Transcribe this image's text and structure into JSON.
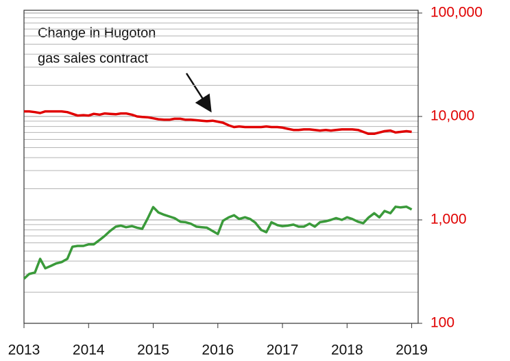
{
  "chart_data": {
    "type": "line",
    "annotation": [
      "Change in Hugoton",
      "gas sales contract"
    ],
    "x": [
      2013,
      2013.08,
      2013.17,
      2013.25,
      2013.33,
      2013.42,
      2013.5,
      2013.58,
      2013.67,
      2013.75,
      2013.83,
      2013.92,
      2014,
      2014.08,
      2014.17,
      2014.25,
      2014.33,
      2014.42,
      2014.5,
      2014.58,
      2014.67,
      2014.75,
      2014.83,
      2014.92,
      2015,
      2015.08,
      2015.17,
      2015.25,
      2015.33,
      2015.42,
      2015.5,
      2015.58,
      2015.67,
      2015.75,
      2015.83,
      2015.92,
      2016,
      2016.08,
      2016.17,
      2016.25,
      2016.33,
      2016.42,
      2016.5,
      2016.58,
      2016.67,
      2016.75,
      2016.83,
      2016.92,
      2017,
      2017.08,
      2017.17,
      2017.25,
      2017.33,
      2017.42,
      2017.5,
      2017.58,
      2017.67,
      2017.75,
      2017.83,
      2017.92,
      2018,
      2018.08,
      2018.17,
      2018.25,
      2018.33,
      2018.42,
      2018.5,
      2018.58,
      2018.67,
      2018.75,
      2018.83,
      2018.92,
      2019
    ],
    "series": [
      {
        "color": "#e00000",
        "values": [
          11200,
          11200,
          11000,
          10800,
          11200,
          11200,
          11200,
          11200,
          11000,
          10600,
          10200,
          10300,
          10200,
          10600,
          10400,
          10700,
          10600,
          10500,
          10700,
          10700,
          10400,
          10000,
          9900,
          9800,
          9600,
          9400,
          9300,
          9300,
          9500,
          9500,
          9300,
          9300,
          9200,
          9100,
          9000,
          9100,
          8900,
          8700,
          8200,
          7900,
          8000,
          7900,
          7900,
          7900,
          7900,
          8000,
          7900,
          7900,
          7800,
          7600,
          7400,
          7400,
          7500,
          7500,
          7400,
          7300,
          7400,
          7300,
          7400,
          7500,
          7500,
          7500,
          7400,
          7100,
          6800,
          6800,
          7000,
          7200,
          7300,
          7000,
          7100,
          7200,
          7100
        ]
      },
      {
        "color": "#3a9a3a",
        "values": [
          270,
          300,
          310,
          420,
          340,
          360,
          380,
          390,
          420,
          550,
          560,
          560,
          580,
          580,
          640,
          700,
          780,
          860,
          880,
          850,
          870,
          840,
          820,
          1050,
          1330,
          1180,
          1120,
          1080,
          1040,
          960,
          950,
          920,
          860,
          850,
          840,
          780,
          730,
          980,
          1060,
          1110,
          1020,
          1060,
          1020,
          940,
          800,
          760,
          950,
          890,
          870,
          880,
          900,
          860,
          860,
          920,
          860,
          950,
          970,
          1000,
          1040,
          1000,
          1060,
          1020,
          960,
          930,
          1050,
          1160,
          1060,
          1220,
          1160,
          1340,
          1320,
          1340,
          1260
        ]
      }
    ],
    "xlim": [
      2013,
      2019.1
    ],
    "xticks": [
      2013,
      2014,
      2015,
      2016,
      2017,
      2018,
      2019
    ],
    "ylim": [
      100,
      100000
    ],
    "log_y": true,
    "yticks": [
      {
        "value": 100,
        "label": "100"
      },
      {
        "value": 1000,
        "label": "1,000"
      },
      {
        "value": 10000,
        "label": "10,000"
      },
      {
        "value": 100000,
        "label": "100,000"
      }
    ],
    "yminor": [
      200,
      300,
      400,
      500,
      600,
      700,
      800,
      900,
      2000,
      3000,
      4000,
      5000,
      6000,
      7000,
      8000,
      9000,
      20000,
      30000,
      40000,
      50000,
      60000,
      70000,
      80000,
      90000
    ],
    "grid": true
  }
}
